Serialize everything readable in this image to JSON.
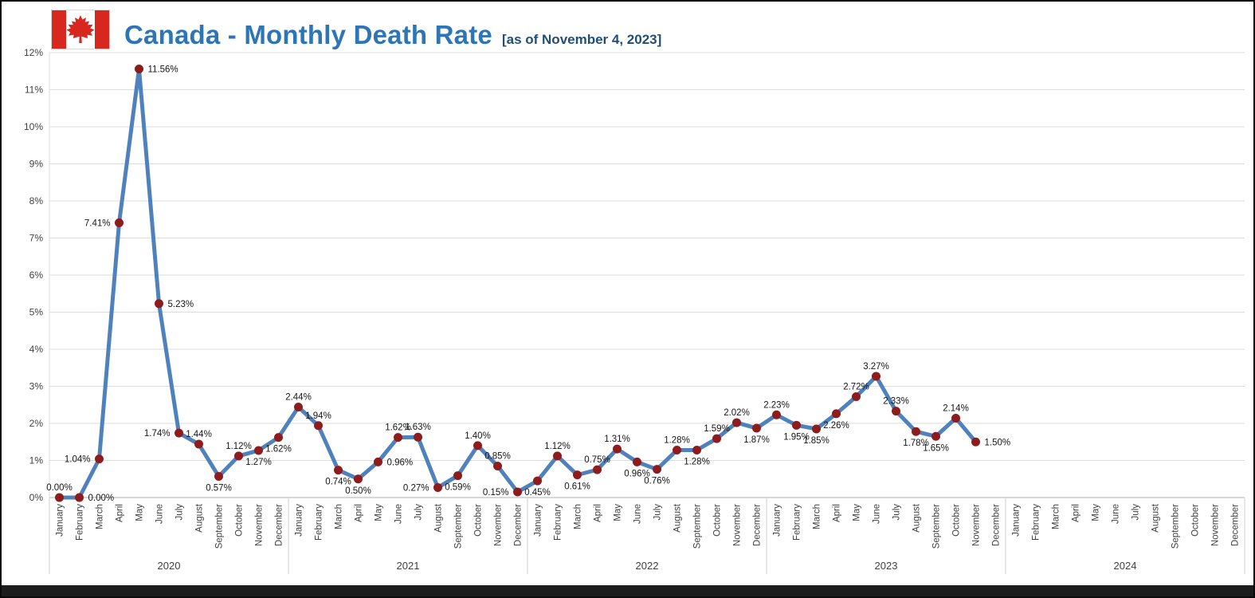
{
  "header": {
    "title": "Canada - Monthly Death Rate",
    "subtitle": "[as of November 4, 2023]"
  },
  "flag": {
    "red": "#d8271e",
    "white": "#ffffff"
  },
  "chart_data": {
    "type": "line",
    "title": "Canada - Monthly Death Rate",
    "subtitle": "[as of November 4, 2023]",
    "ylim": [
      0,
      12
    ],
    "ytick_step": 1,
    "ytick_suffix": "%",
    "grid": true,
    "legend": "none",
    "line_color": "#4f81bd",
    "marker_color": "#8e1c1c",
    "years": [
      "2020",
      "2021",
      "2022",
      "2023",
      "2024"
    ],
    "months": [
      "January",
      "February",
      "March",
      "April",
      "May",
      "June",
      "July",
      "August",
      "September",
      "October",
      "November",
      "December"
    ],
    "series": [
      {
        "name": "Monthly Death Rate",
        "points": [
          {
            "year": "2020",
            "month": "January",
            "value": 0.0,
            "label": "0.00%",
            "label_pos": "above"
          },
          {
            "year": "2020",
            "month": "February",
            "value": 0.0,
            "label": "0.00%",
            "label_pos": "right"
          },
          {
            "year": "2020",
            "month": "March",
            "value": 1.04,
            "label": "1.04%",
            "label_pos": "left"
          },
          {
            "year": "2020",
            "month": "April",
            "value": 7.41,
            "label": "7.41%",
            "label_pos": "left"
          },
          {
            "year": "2020",
            "month": "May",
            "value": 11.56,
            "label": "11.56%",
            "label_pos": "right"
          },
          {
            "year": "2020",
            "month": "June",
            "value": 5.23,
            "label": "5.23%",
            "label_pos": "right"
          },
          {
            "year": "2020",
            "month": "July",
            "value": 1.74,
            "label": "1.74%",
            "label_pos": "left"
          },
          {
            "year": "2020",
            "month": "August",
            "value": 1.44,
            "label": "1.44%",
            "label_pos": "above"
          },
          {
            "year": "2020",
            "month": "September",
            "value": 0.57,
            "label": "0.57%",
            "label_pos": "below"
          },
          {
            "year": "2020",
            "month": "October",
            "value": 1.12,
            "label": "1.12%",
            "label_pos": "above"
          },
          {
            "year": "2020",
            "month": "November",
            "value": 1.27,
            "label": "1.27%",
            "label_pos": "below"
          },
          {
            "year": "2020",
            "month": "December",
            "value": 1.62,
            "label": "1.62%",
            "label_pos": "below"
          },
          {
            "year": "2021",
            "month": "January",
            "value": 2.44,
            "label": "2.44%",
            "label_pos": "above"
          },
          {
            "year": "2021",
            "month": "February",
            "value": 1.94,
            "label": "1.94%",
            "label_pos": "above"
          },
          {
            "year": "2021",
            "month": "March",
            "value": 0.74,
            "label": "0.74%",
            "label_pos": "below"
          },
          {
            "year": "2021",
            "month": "April",
            "value": 0.5,
            "label": "0.50%",
            "label_pos": "below"
          },
          {
            "year": "2021",
            "month": "May",
            "value": 0.96,
            "label": "0.96%",
            "label_pos": "right"
          },
          {
            "year": "2021",
            "month": "June",
            "value": 1.62,
            "label": "1.62%",
            "label_pos": "above"
          },
          {
            "year": "2021",
            "month": "July",
            "value": 1.63,
            "label": "1.63%",
            "label_pos": "above"
          },
          {
            "year": "2021",
            "month": "August",
            "value": 0.27,
            "label": "0.27%",
            "label_pos": "left"
          },
          {
            "year": "2021",
            "month": "September",
            "value": 0.59,
            "label": "0.59%",
            "label_pos": "below"
          },
          {
            "year": "2021",
            "month": "October",
            "value": 1.4,
            "label": "1.40%",
            "label_pos": "above"
          },
          {
            "year": "2021",
            "month": "November",
            "value": 0.85,
            "label": "0.85%",
            "label_pos": "above"
          },
          {
            "year": "2021",
            "month": "December",
            "value": 0.15,
            "label": "0.15%",
            "label_pos": "left"
          },
          {
            "year": "2022",
            "month": "January",
            "value": 0.45,
            "label": "0.45%",
            "label_pos": "below"
          },
          {
            "year": "2022",
            "month": "February",
            "value": 1.12,
            "label": "1.12%",
            "label_pos": "above"
          },
          {
            "year": "2022",
            "month": "March",
            "value": 0.61,
            "label": "0.61%",
            "label_pos": "below"
          },
          {
            "year": "2022",
            "month": "April",
            "value": 0.75,
            "label": "0.75%",
            "label_pos": "above"
          },
          {
            "year": "2022",
            "month": "May",
            "value": 1.31,
            "label": "1.31%",
            "label_pos": "above"
          },
          {
            "year": "2022",
            "month": "June",
            "value": 0.96,
            "label": "0.96%",
            "label_pos": "below"
          },
          {
            "year": "2022",
            "month": "July",
            "value": 0.76,
            "label": "0.76%",
            "label_pos": "below"
          },
          {
            "year": "2022",
            "month": "August",
            "value": 1.28,
            "label": "1.28%",
            "label_pos": "above"
          },
          {
            "year": "2022",
            "month": "September",
            "value": 1.28,
            "label": "1.28%",
            "label_pos": "below"
          },
          {
            "year": "2022",
            "month": "October",
            "value": 1.59,
            "label": "1.59%",
            "label_pos": "above"
          },
          {
            "year": "2022",
            "month": "November",
            "value": 2.02,
            "label": "2.02%",
            "label_pos": "above"
          },
          {
            "year": "2022",
            "month": "December",
            "value": 1.87,
            "label": "1.87%",
            "label_pos": "below"
          },
          {
            "year": "2023",
            "month": "January",
            "value": 2.23,
            "label": "2.23%",
            "label_pos": "above"
          },
          {
            "year": "2023",
            "month": "February",
            "value": 1.95,
            "label": "1.95%",
            "label_pos": "below"
          },
          {
            "year": "2023",
            "month": "March",
            "value": 1.85,
            "label": "1.85%",
            "label_pos": "below"
          },
          {
            "year": "2023",
            "month": "April",
            "value": 2.26,
            "label": "2.26%",
            "label_pos": "below"
          },
          {
            "year": "2023",
            "month": "May",
            "value": 2.72,
            "label": "2.72%",
            "label_pos": "above"
          },
          {
            "year": "2023",
            "month": "June",
            "value": 3.27,
            "label": "3.27%",
            "label_pos": "above"
          },
          {
            "year": "2023",
            "month": "July",
            "value": 2.33,
            "label": "2.33%",
            "label_pos": "above"
          },
          {
            "year": "2023",
            "month": "August",
            "value": 1.78,
            "label": "1.78%",
            "label_pos": "below"
          },
          {
            "year": "2023",
            "month": "September",
            "value": 1.65,
            "label": "1.65%",
            "label_pos": "below"
          },
          {
            "year": "2023",
            "month": "October",
            "value": 2.14,
            "label": "2.14%",
            "label_pos": "above"
          },
          {
            "year": "2023",
            "month": "November",
            "value": 1.5,
            "label": "1.50%",
            "label_pos": "right"
          }
        ]
      }
    ]
  }
}
